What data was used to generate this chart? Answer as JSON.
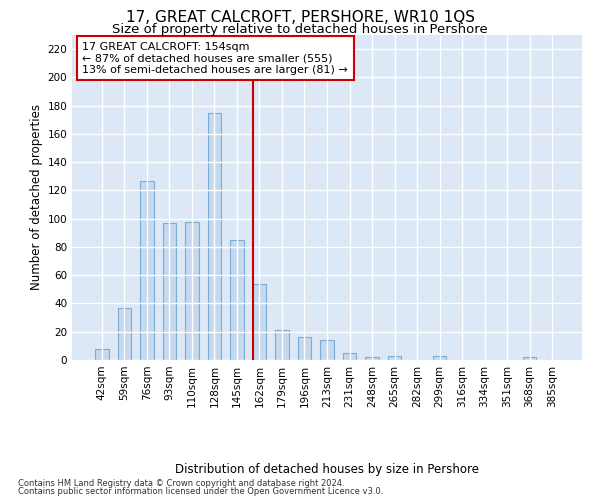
{
  "title": "17, GREAT CALCROFT, PERSHORE, WR10 1QS",
  "subtitle": "Size of property relative to detached houses in Pershore",
  "xlabel": "Distribution of detached houses by size in Pershore",
  "ylabel": "Number of detached properties",
  "footnote1": "Contains HM Land Registry data © Crown copyright and database right 2024.",
  "footnote2": "Contains public sector information licensed under the Open Government Licence v3.0.",
  "annotation_line1": "17 GREAT CALCROFT: 154sqm",
  "annotation_line2": "← 87% of detached houses are smaller (555)",
  "annotation_line3": "13% of semi-detached houses are larger (81) →",
  "bar_labels": [
    "42sqm",
    "59sqm",
    "76sqm",
    "93sqm",
    "110sqm",
    "128sqm",
    "145sqm",
    "162sqm",
    "179sqm",
    "196sqm",
    "213sqm",
    "231sqm",
    "248sqm",
    "265sqm",
    "282sqm",
    "299sqm",
    "316sqm",
    "334sqm",
    "351sqm",
    "368sqm",
    "385sqm"
  ],
  "bar_values": [
    8,
    37,
    127,
    97,
    98,
    175,
    85,
    54,
    21,
    16,
    14,
    5,
    2,
    3,
    0,
    3,
    0,
    0,
    0,
    2,
    0
  ],
  "bar_color": "#c5d8ee",
  "bar_edge_color": "#7aadd4",
  "vline_index": 7,
  "vline_color": "#cc0000",
  "annotation_box_color": "#cc0000",
  "background_color": "#dce8f5",
  "grid_color": "#ffffff",
  "ylim": [
    0,
    230
  ],
  "yticks": [
    0,
    20,
    40,
    60,
    80,
    100,
    120,
    140,
    160,
    180,
    200,
    220
  ],
  "title_fontsize": 11,
  "subtitle_fontsize": 9.5,
  "label_fontsize": 8.5,
  "tick_fontsize": 7.5,
  "annotation_fontsize": 8,
  "bar_width": 0.6
}
